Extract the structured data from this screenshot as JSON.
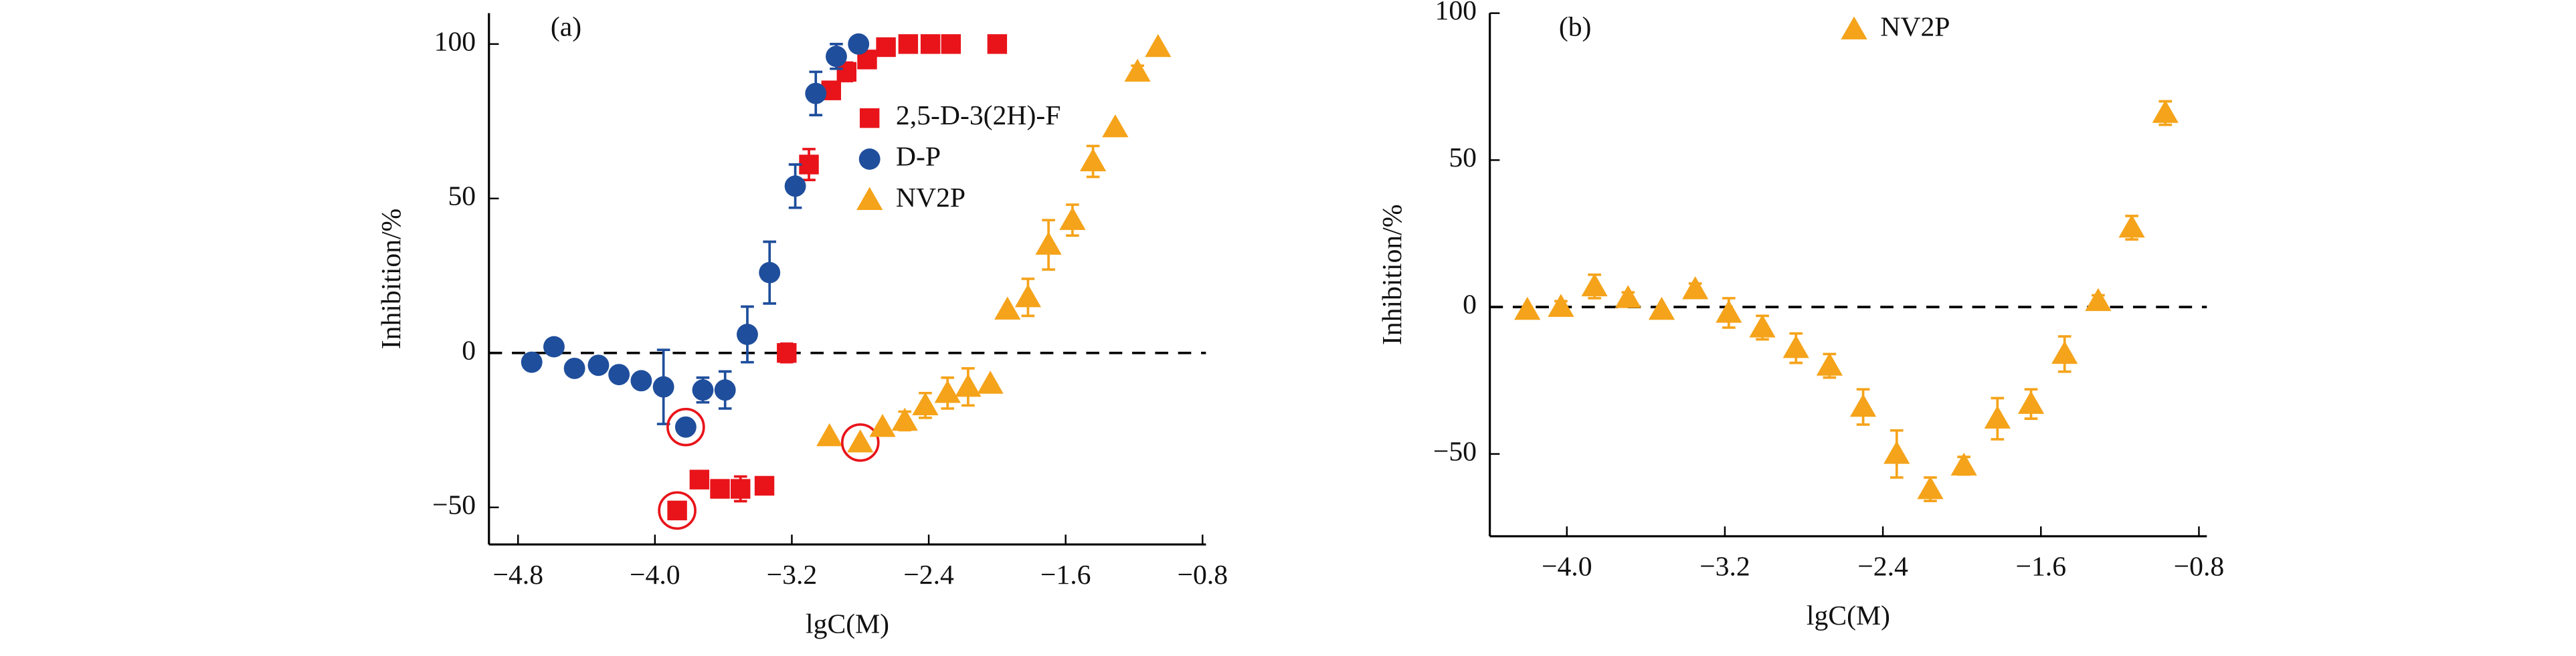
{
  "chart_data": [
    {
      "type": "scatter",
      "panel_label": "(a)",
      "x_label": "lgC(M)",
      "y_label": "Inhibition/%",
      "xlim": [
        -4.97,
        -0.78
      ],
      "ylim": [
        -62,
        110
      ],
      "xticks": [
        {
          "value": -4.8,
          "label": "−4.8"
        },
        {
          "value": -4.0,
          "label": "−4.0"
        },
        {
          "value": -3.2,
          "label": "−3.2"
        },
        {
          "value": -2.4,
          "label": "−2.4"
        },
        {
          "value": -1.6,
          "label": "−1.6"
        },
        {
          "value": -0.8,
          "label": "−0.8"
        }
      ],
      "yticks": [
        {
          "value": -50,
          "label": "−50"
        },
        0,
        50,
        100
      ],
      "zero_line": true,
      "legend": true,
      "series": [
        {
          "name": "2,5-D-3(2H)-F",
          "color": "#e8141a",
          "marker": "square",
          "x": [
            -3.87,
            -3.74,
            -3.62,
            -3.5,
            -3.36,
            -3.23,
            -3.1,
            -2.97,
            -2.88,
            -2.76,
            -2.65,
            -2.52,
            -2.39,
            -2.27,
            -2.0
          ],
          "values": [
            -51,
            -41,
            -44,
            -44,
            -43,
            0,
            61,
            85,
            91,
            95,
            99,
            100,
            100,
            100,
            100
          ],
          "errors": [
            0,
            0,
            0,
            4,
            0,
            3,
            5,
            0,
            3,
            0,
            0,
            0,
            0,
            0,
            0
          ],
          "circled": [
            0
          ]
        },
        {
          "name": "D-P",
          "color": "#1f4e9c",
          "marker": "circle",
          "x": [
            -4.72,
            -4.59,
            -4.47,
            -4.33,
            -4.21,
            -4.08,
            -3.95,
            -3.82,
            -3.72,
            -3.59,
            -3.46,
            -3.33,
            -3.18,
            -3.06,
            -2.94,
            -2.81
          ],
          "values": [
            -3,
            2,
            -5,
            -4,
            -7,
            -9,
            -11,
            -24,
            -12,
            -12,
            6,
            26,
            54,
            84,
            96,
            100
          ],
          "errors": [
            0,
            0,
            0,
            0,
            0,
            0,
            12,
            0,
            4,
            6,
            9,
            10,
            7,
            7,
            4,
            2
          ],
          "circled": [
            7
          ]
        },
        {
          "name": "NV2P",
          "color": "#f5a31a",
          "marker": "triangle",
          "x": [
            -2.98,
            -2.8,
            -2.67,
            -2.54,
            -2.42,
            -2.29,
            -2.17,
            -2.04,
            -1.94,
            -1.82,
            -1.7,
            -1.56,
            -1.44,
            -1.31,
            -1.18,
            -1.06
          ],
          "values": [
            -27,
            -29,
            -24,
            -22,
            -17,
            -13,
            -11,
            -10,
            14,
            18,
            35,
            43,
            62,
            73,
            91,
            99
          ],
          "errors": [
            0,
            0,
            0,
            3,
            4,
            5,
            6,
            0,
            0,
            6,
            8,
            5,
            5,
            0,
            2,
            0
          ],
          "circled": [
            1
          ]
        }
      ]
    },
    {
      "type": "scatter",
      "panel_label": "(b)",
      "x_label": "lgC(M)",
      "y_label": "Inhibition/%",
      "xlim": [
        -4.39,
        -0.76
      ],
      "ylim": [
        -78,
        100
      ],
      "xticks": [
        {
          "value": -4.0,
          "label": "−4.0"
        },
        {
          "value": -3.2,
          "label": "−3.2"
        },
        {
          "value": -2.4,
          "label": "−2.4"
        },
        {
          "value": -1.6,
          "label": "−1.6"
        },
        {
          "value": -0.8,
          "label": "−0.8"
        }
      ],
      "yticks": [
        {
          "value": -50,
          "label": "−50"
        },
        0,
        50,
        100
      ],
      "zero_line": true,
      "legend": true,
      "series": [
        {
          "name": "NV2P",
          "color": "#f5a31a",
          "marker": "triangle",
          "x": [
            -4.2,
            -4.03,
            -3.86,
            -3.69,
            -3.52,
            -3.35,
            -3.18,
            -3.01,
            -2.84,
            -2.67,
            -2.5,
            -2.33,
            -2.16,
            -1.99,
            -1.82,
            -1.65,
            -1.48,
            -1.31,
            -1.14,
            -0.97
          ],
          "values": [
            -1,
            0,
            7,
            3,
            -1,
            6,
            -2,
            -7,
            -14,
            -20,
            -34,
            -50,
            -62,
            -54,
            -38,
            -33,
            -16,
            2,
            27,
            66
          ],
          "errors": [
            0,
            2,
            4,
            2,
            0,
            2,
            5,
            4,
            5,
            4,
            6,
            8,
            4,
            3,
            7,
            5,
            6,
            2,
            4,
            4
          ]
        }
      ]
    }
  ]
}
